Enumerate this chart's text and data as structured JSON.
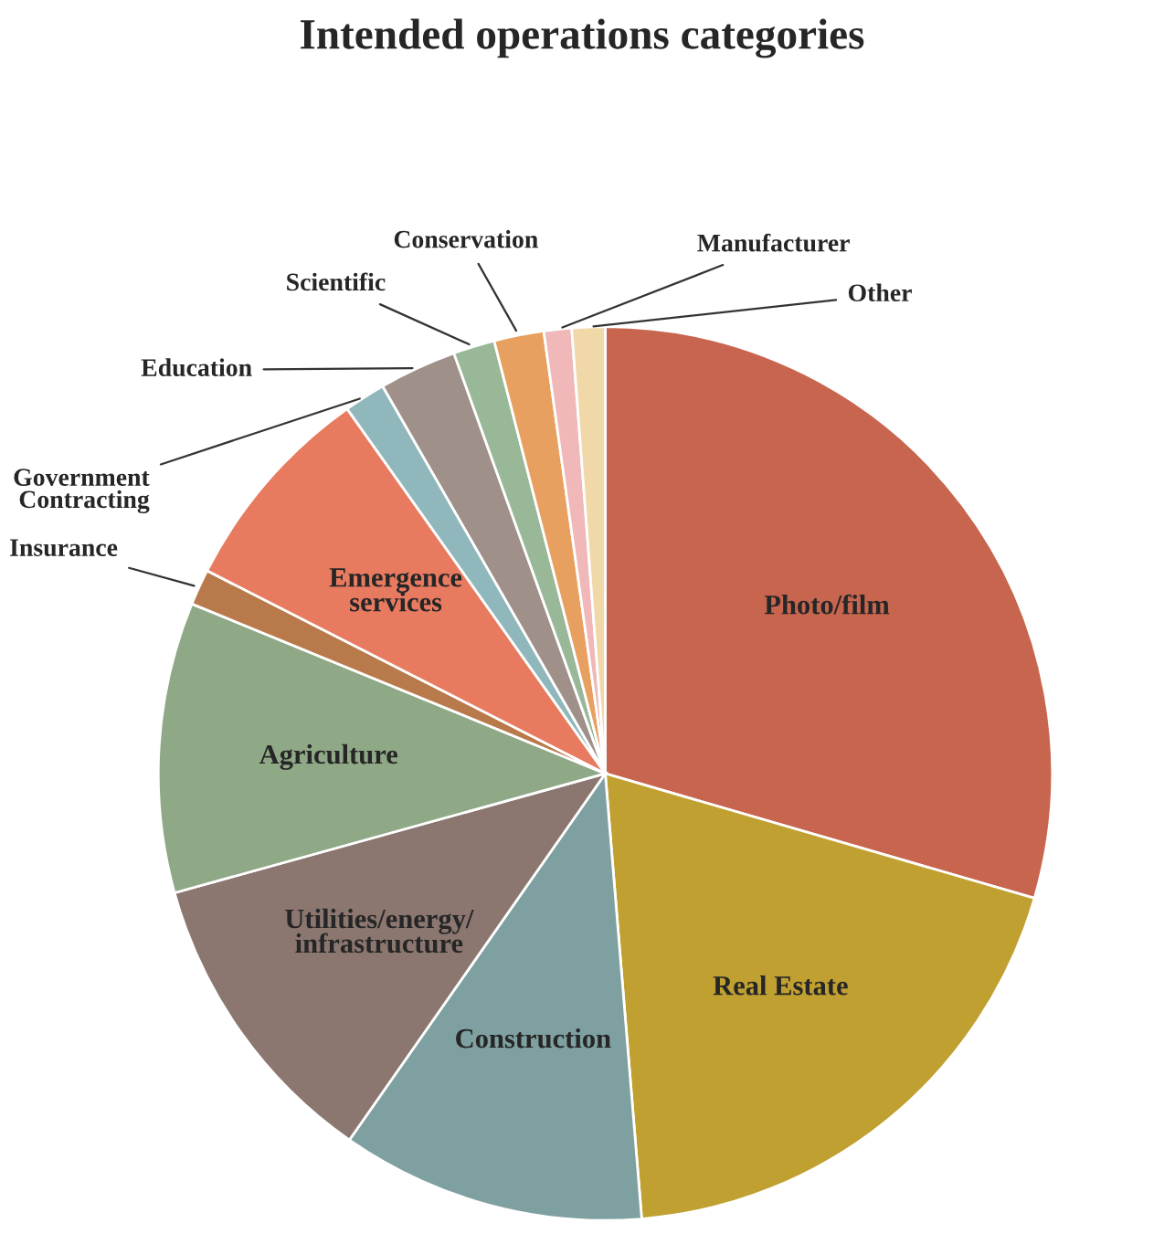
{
  "chart_data": {
    "type": "pie",
    "title": "Intended operations categories",
    "categories": [
      "Photo/film",
      "Real Estate",
      "Construction",
      "Utilities/energy/\ninfrastructure",
      "Agriculture",
      "Insurance",
      "Emergence\nservices",
      "Government\nContracting",
      "Education",
      "Scientific",
      "Conservation",
      "Manufacturer",
      "Other"
    ],
    "values": [
      29.5,
      19.2,
      11,
      11,
      10.5,
      1.3,
      7.7,
      1.5,
      2.8,
      1.5,
      1.8,
      1,
      1.2
    ],
    "colors": [
      "#c8654e",
      "#c0a030",
      "#7fa0a0",
      "#8b7770",
      "#8fa886",
      "#b87a4a",
      "#e87a60",
      "#90b8bc",
      "#a0908a",
      "#98b898",
      "#e8a060",
      "#f0b8b8",
      "#f0d8a8"
    ],
    "legend": false
  }
}
